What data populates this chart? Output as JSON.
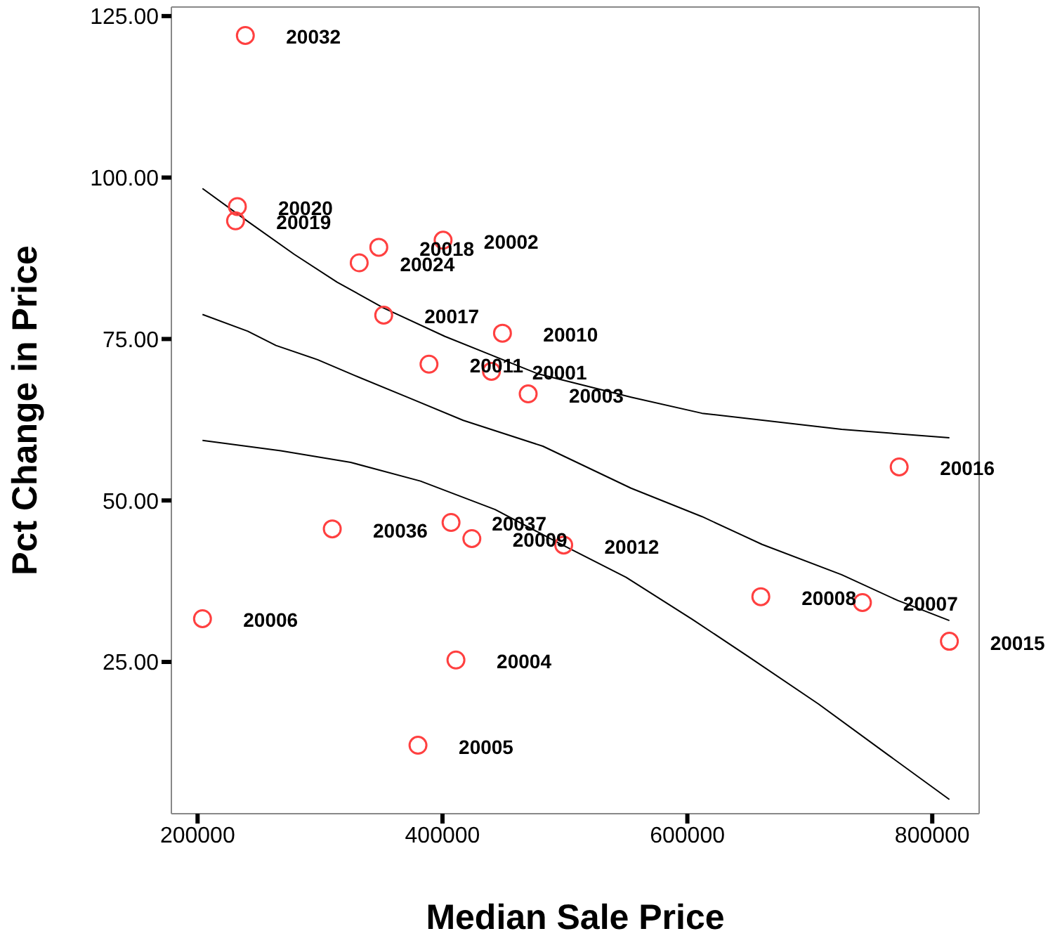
{
  "chart_data": {
    "type": "scatter",
    "xlabel": "Median Sale Price",
    "ylabel": "Pct Change in Price",
    "xlim": [
      178600,
      838300
    ],
    "ylim": [
      1.5,
      126.4
    ],
    "xticks": [
      200000,
      400000,
      600000,
      800000
    ],
    "yticks": [
      {
        "value": 25,
        "label": "25.00"
      },
      {
        "value": 50,
        "label": "50.00"
      },
      {
        "value": 75,
        "label": "75.00"
      },
      {
        "value": 100,
        "label": "100.00"
      },
      {
        "value": 125,
        "label": "125.00"
      }
    ],
    "series": [
      {
        "color": "#ff4040",
        "marker": "circle",
        "x": [
          239000,
          232500,
          231000,
          332000,
          348000,
          400500,
          352000,
          449000,
          389000,
          440000,
          470000,
          773000,
          310000,
          407000,
          424000,
          499000,
          660000,
          743000,
          814000,
          204000,
          411000,
          380000
        ],
        "values": [
          122.0,
          95.5,
          93.3,
          86.8,
          89.2,
          90.3,
          78.7,
          75.9,
          71.1,
          70.0,
          66.5,
          55.2,
          45.6,
          46.6,
          44.1,
          43.1,
          35.1,
          34.2,
          28.2,
          31.7,
          25.3,
          12.1
        ]
      },
      {
        "type": "line",
        "color": "#000000",
        "marker": "none",
        "x": [
          204000,
          241000,
          279000,
          314000,
          352000,
          402000,
          440000,
          478000,
          554000,
          612000,
          726000,
          814000
        ],
        "values": [
          98.3,
          93.2,
          88.1,
          83.8,
          79.8,
          75.4,
          72.5,
          69.6,
          66.0,
          63.5,
          61.0,
          59.7
        ]
      },
      {
        "type": "line",
        "color": "#000000",
        "marker": "none",
        "x": [
          204000,
          241000,
          264000,
          298000,
          329000,
          375000,
          417000,
          482000,
          554000,
          612000,
          661000,
          726000,
          772000,
          814000
        ],
        "values": [
          78.8,
          76.2,
          74.0,
          71.8,
          69.3,
          65.7,
          62.4,
          58.4,
          51.9,
          47.5,
          43.2,
          38.5,
          34.5,
          31.4
        ]
      },
      {
        "type": "line",
        "color": "#000000",
        "marker": "none",
        "x": [
          204000,
          268000,
          325000,
          382000,
          443000,
          497000,
          550000,
          604000,
          650000,
          707000,
          764000,
          814000
        ],
        "values": [
          59.3,
          57.7,
          55.9,
          53.0,
          48.6,
          43.2,
          38.1,
          31.6,
          25.8,
          18.5,
          10.6,
          3.7
        ]
      }
    ],
    "annotations": [
      {
        "text": "20032",
        "x": 239000,
        "y": 122.0
      },
      {
        "text": "20020",
        "x": 232500,
        "y": 95.5
      },
      {
        "text": "20019",
        "x": 231000,
        "y": 93.3
      },
      {
        "text": "20024",
        "x": 332000,
        "y": 86.8
      },
      {
        "text": "20018",
        "x": 348000,
        "y": 89.2
      },
      {
        "text": "20002",
        "x": 400500,
        "y": 90.3
      },
      {
        "text": "20017",
        "x": 352000,
        "y": 78.7
      },
      {
        "text": "20010",
        "x": 449000,
        "y": 75.9
      },
      {
        "text": "20011",
        "x": 389000,
        "y": 71.1
      },
      {
        "text": "20001",
        "x": 440000,
        "y": 70.0
      },
      {
        "text": "20003",
        "x": 470000,
        "y": 66.5
      },
      {
        "text": "20016",
        "x": 773000,
        "y": 55.2
      },
      {
        "text": "20036",
        "x": 310000,
        "y": 45.6
      },
      {
        "text": "20037",
        "x": 407000,
        "y": 46.6
      },
      {
        "text": "20009",
        "x": 424000,
        "y": 44.1
      },
      {
        "text": "20012",
        "x": 499000,
        "y": 43.1
      },
      {
        "text": "20008",
        "x": 660000,
        "y": 35.1
      },
      {
        "text": "20007",
        "x": 743000,
        "y": 34.2
      },
      {
        "text": "20015",
        "x": 814000,
        "y": 28.2
      },
      {
        "text": "20006",
        "x": 204000,
        "y": 31.7
      },
      {
        "text": "20004",
        "x": 411000,
        "y": 25.3
      },
      {
        "text": "20005",
        "x": 380000,
        "y": 12.1
      }
    ]
  }
}
